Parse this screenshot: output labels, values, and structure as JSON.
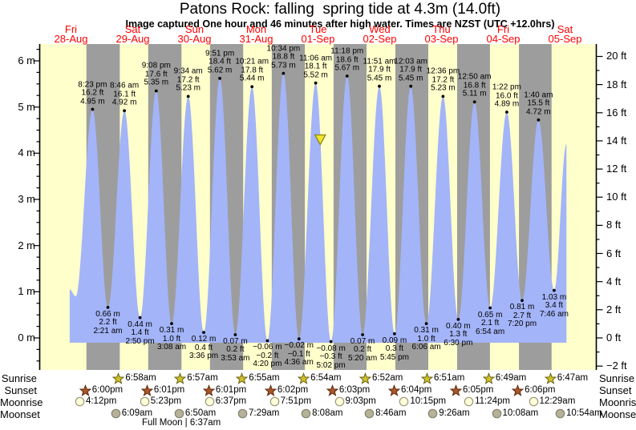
{
  "title": "Patons Rock: falling  spring tide at 4.3m (14.0ft)",
  "subtitle": "Image captured One hour and 46 minutes after high water. Times are NZST (UTC +12.0hrs)",
  "days": [
    {
      "name": "Fri",
      "date": "28-Aug"
    },
    {
      "name": "Sat",
      "date": "29-Aug"
    },
    {
      "name": "Sun",
      "date": "30-Aug"
    },
    {
      "name": "Mon",
      "date": "31-Aug"
    },
    {
      "name": "Tue",
      "date": "01-Sep"
    },
    {
      "name": "Wed",
      "date": "02-Sep"
    },
    {
      "name": "Thu",
      "date": "03-Sep"
    },
    {
      "name": "Fri",
      "date": "04-Sep"
    },
    {
      "name": "Sat",
      "date": "05-Sep"
    }
  ],
  "chart_data": {
    "type": "area",
    "description": "Tide height curve over 9 days with day/night shading; labeled high and low tide events",
    "y_axis_left": {
      "unit": "m",
      "ticks": [
        0,
        1,
        2,
        3,
        4,
        5,
        6
      ]
    },
    "y_axis_right": {
      "unit": "ft",
      "ticks": [
        -2,
        0,
        2,
        4,
        6,
        8,
        10,
        12,
        14,
        16,
        18,
        20
      ]
    },
    "tide_events": [
      {
        "day": 0,
        "type": "high",
        "time": "8:23 pm",
        "hour": 20.38,
        "height_m": 4.95,
        "height_ft": 16.2
      },
      {
        "day": 1,
        "type": "low",
        "time": "2:21 am",
        "hour": 2.35,
        "height_m": 0.66,
        "height_ft": 2.2
      },
      {
        "day": 1,
        "type": "high",
        "time": "8:46 am",
        "hour": 8.77,
        "height_m": 4.92,
        "height_ft": 16.1
      },
      {
        "day": 1,
        "type": "low",
        "time": "2:50 pm",
        "hour": 14.83,
        "height_m": 0.44,
        "height_ft": 1.4
      },
      {
        "day": 1,
        "type": "high",
        "time": "9:08 pm",
        "hour": 21.13,
        "height_m": 5.35,
        "height_ft": 17.6
      },
      {
        "day": 2,
        "type": "low",
        "time": "3:08 am",
        "hour": 3.13,
        "height_m": 0.31,
        "height_ft": 1.0
      },
      {
        "day": 2,
        "type": "high",
        "time": "9:34 am",
        "hour": 9.57,
        "height_m": 5.23,
        "height_ft": 17.2
      },
      {
        "day": 2,
        "type": "low",
        "time": "3:36 pm",
        "hour": 15.6,
        "height_m": 0.12,
        "height_ft": 0.4
      },
      {
        "day": 2,
        "type": "high",
        "time": "9:51 pm",
        "hour": 21.85,
        "height_m": 5.62,
        "height_ft": 18.4
      },
      {
        "day": 3,
        "type": "low",
        "time": "3:53 am",
        "hour": 3.88,
        "height_m": 0.07,
        "height_ft": 0.2
      },
      {
        "day": 3,
        "type": "high",
        "time": "10:21 am",
        "hour": 10.35,
        "height_m": 5.44,
        "height_ft": 17.8
      },
      {
        "day": 3,
        "type": "low",
        "time": "4:20 pm",
        "hour": 16.33,
        "height_m": -0.06,
        "height_ft": -0.2
      },
      {
        "day": 3,
        "type": "high",
        "time": "10:34 pm",
        "hour": 22.57,
        "height_m": 5.73,
        "height_ft": 18.8
      },
      {
        "day": 4,
        "type": "low",
        "time": "4:36 am",
        "hour": 4.6,
        "height_m": -0.02,
        "height_ft": -0.1
      },
      {
        "day": 4,
        "type": "high",
        "time": "11:06 am",
        "hour": 11.1,
        "height_m": 5.52,
        "height_ft": 18.1
      },
      {
        "day": 4,
        "type": "low",
        "time": "5:02 pm",
        "hour": 17.03,
        "height_m": -0.08,
        "height_ft": -0.3
      },
      {
        "day": 4,
        "type": "high",
        "time": "11:18 pm",
        "hour": 23.3,
        "height_m": 5.67,
        "height_ft": 18.6
      },
      {
        "day": 5,
        "type": "low",
        "time": "5:20 am",
        "hour": 5.33,
        "height_m": 0.07,
        "height_ft": 0.2
      },
      {
        "day": 5,
        "type": "high",
        "time": "11:51 am",
        "hour": 11.85,
        "height_m": 5.45,
        "height_ft": 17.9
      },
      {
        "day": 5,
        "type": "low",
        "time": "5:45 pm",
        "hour": 17.75,
        "height_m": 0.09,
        "height_ft": 0.3
      },
      {
        "day": 6,
        "type": "high",
        "time": "12:03 am",
        "hour": 0.05,
        "height_m": 5.45,
        "height_ft": 17.9
      },
      {
        "day": 6,
        "type": "low",
        "time": "6:06 am",
        "hour": 6.1,
        "height_m": 0.31,
        "height_ft": 1.0
      },
      {
        "day": 6,
        "type": "high",
        "time": "12:36 pm",
        "hour": 12.6,
        "height_m": 5.23,
        "height_ft": 17.2
      },
      {
        "day": 6,
        "type": "low",
        "time": "6:30 pm",
        "hour": 18.5,
        "height_m": 0.4,
        "height_ft": 1.3
      },
      {
        "day": 7,
        "type": "high",
        "time": "12:50 am",
        "hour": 0.83,
        "height_m": 5.11,
        "height_ft": 16.8
      },
      {
        "day": 7,
        "type": "low",
        "time": "6:54 am",
        "hour": 6.9,
        "height_m": 0.65,
        "height_ft": 2.1
      },
      {
        "day": 7,
        "type": "high",
        "time": "1:22 pm",
        "hour": 13.37,
        "height_m": 4.89,
        "height_ft": 16.0
      },
      {
        "day": 7,
        "type": "low",
        "time": "7:20 pm",
        "hour": 19.33,
        "height_m": 0.81,
        "height_ft": 2.7
      },
      {
        "day": 8,
        "type": "high",
        "time": "1:40 am",
        "hour": 1.67,
        "height_m": 4.72,
        "height_ft": 15.5
      },
      {
        "day": 8,
        "type": "low",
        "time": "7:46 am",
        "hour": 7.77,
        "height_m": 1.03,
        "height_ft": 3.4
      }
    ],
    "curve_start": {
      "day": 0,
      "hour": 11.5,
      "height_m": 1.05
    },
    "curve_first_low": {
      "day": 0,
      "hour": 13.83,
      "height_m": 0.9
    },
    "curve_end": {
      "day": 8,
      "hour": 12.55,
      "height_m": 4.2
    },
    "capture_marker": {
      "day": 4,
      "hour": 12.87,
      "height_m": 4.3
    }
  },
  "astro": {
    "rows": [
      {
        "key": "sunrise",
        "label": "Sunrise",
        "icon": "sunrise-star-icon",
        "events": [
          {
            "day": 1,
            "time": "6:58am",
            "hour": 6.97
          },
          {
            "day": 2,
            "time": "6:57am",
            "hour": 6.95
          },
          {
            "day": 3,
            "time": "6:55am",
            "hour": 6.92
          },
          {
            "day": 4,
            "time": "6:54am",
            "hour": 6.9
          },
          {
            "day": 5,
            "time": "6:52am",
            "hour": 6.87
          },
          {
            "day": 6,
            "time": "6:51am",
            "hour": 6.85
          },
          {
            "day": 7,
            "time": "6:49am",
            "hour": 6.82
          },
          {
            "day": 8,
            "time": "6:47am",
            "hour": 6.78
          }
        ]
      },
      {
        "key": "sunset",
        "label": "Sunset",
        "icon": "sunset-star-icon",
        "events": [
          {
            "day": 0,
            "time": "6:00pm",
            "hour": 18.0
          },
          {
            "day": 1,
            "time": "6:01pm",
            "hour": 18.02
          },
          {
            "day": 2,
            "time": "6:01pm",
            "hour": 18.02
          },
          {
            "day": 3,
            "time": "6:02pm",
            "hour": 18.03
          },
          {
            "day": 4,
            "time": "6:03pm",
            "hour": 18.05
          },
          {
            "day": 5,
            "time": "6:04pm",
            "hour": 18.07
          },
          {
            "day": 6,
            "time": "6:05pm",
            "hour": 18.08
          },
          {
            "day": 7,
            "time": "6:06pm",
            "hour": 18.1
          }
        ]
      },
      {
        "key": "moonrise",
        "label": "Moonrise",
        "icon": "moonrise-icon",
        "events": [
          {
            "day": 0,
            "time": "4:12pm",
            "hour": 16.2
          },
          {
            "day": 1,
            "time": "5:23pm",
            "hour": 17.38
          },
          {
            "day": 2,
            "time": "6:37pm",
            "hour": 18.62
          },
          {
            "day": 3,
            "time": "7:51pm",
            "hour": 19.85
          },
          {
            "day": 4,
            "time": "9:03pm",
            "hour": 21.05
          },
          {
            "day": 5,
            "time": "10:15pm",
            "hour": 22.25
          },
          {
            "day": 6,
            "time": "11:24pm",
            "hour": 23.4
          },
          {
            "day": 8,
            "time": "12:29am",
            "hour": 0.48
          }
        ]
      },
      {
        "key": "moonset",
        "label": "Moonset",
        "icon": "moonset-icon",
        "events": [
          {
            "day": 1,
            "time": "6:09am",
            "hour": 6.15
          },
          {
            "day": 2,
            "time": "6:50am",
            "hour": 6.83
          },
          {
            "day": 3,
            "time": "7:29am",
            "hour": 7.48
          },
          {
            "day": 4,
            "time": "8:08am",
            "hour": 8.13
          },
          {
            "day": 5,
            "time": "8:46am",
            "hour": 8.77
          },
          {
            "day": 6,
            "time": "9:26am",
            "hour": 9.43
          },
          {
            "day": 7,
            "time": "10:08am",
            "hour": 10.13
          },
          {
            "day": 8,
            "time": "10:54am",
            "hour": 10.9
          }
        ]
      }
    ],
    "full_moon": "Full Moon | 6:37am"
  },
  "colors": {
    "day_band": "#ffffcc",
    "night_band": "#9d9d9d",
    "tide_fill": "#a3b4f8",
    "date_text": "#ff0000",
    "axis_line": "#000000",
    "sunrise_star": "#cfc02b",
    "sunrise_star_border": "#6b6414",
    "sunset_star": "#a9572a",
    "sunset_star_border": "#5f2a0c",
    "moonrise_fill": "#ffffd9",
    "moonrise_border": "#9b977a",
    "moonset_fill": "#b6b299",
    "moonset_border": "#84816c",
    "marker_fill": "#f0e52a",
    "marker_border": "#8a8512"
  }
}
